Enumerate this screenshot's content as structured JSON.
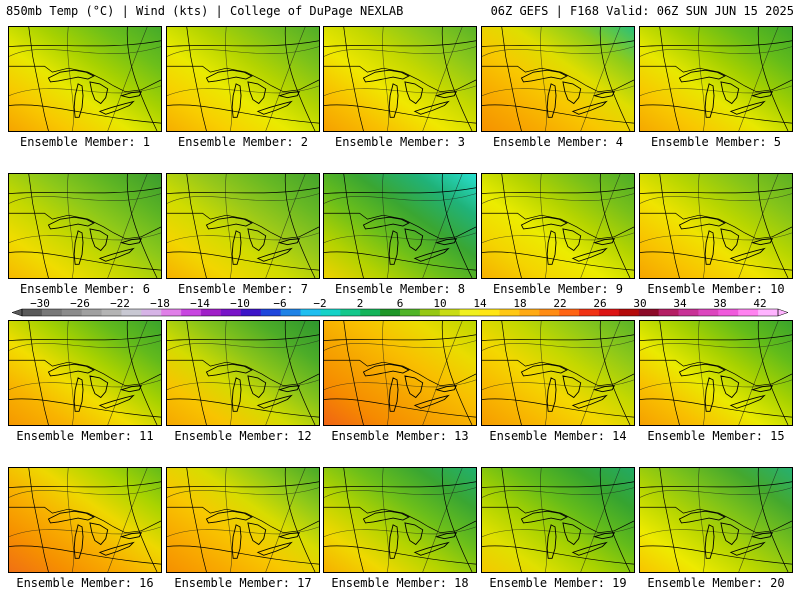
{
  "header": {
    "left": "850mb Temp (°C) | Wind (kts) | College of DuPage NEXLAB",
    "right": "06Z GEFS | F168 Valid: 06Z SUN JUN 15 2025"
  },
  "label_prefix": "Ensemble Member: ",
  "colorbar": {
    "labels": [
      "−30",
      "−26",
      "−22",
      "−18",
      "−14",
      "−10",
      "−6",
      "−2",
      "2",
      "6",
      "10",
      "14",
      "18",
      "22",
      "26",
      "30",
      "34",
      "38",
      "42"
    ],
    "colors": [
      "#5a5a5a",
      "#787878",
      "#8c8c8c",
      "#a0a0a0",
      "#b4b4b4",
      "#c8c8d2",
      "#d6b4e6",
      "#e07fe8",
      "#c846e0",
      "#a020c8",
      "#7814c8",
      "#3c14c8",
      "#1e46dc",
      "#1e82e6",
      "#1ebef0",
      "#14d2c8",
      "#14c88c",
      "#14b45a",
      "#1e9628",
      "#50b428",
      "#96c814",
      "#c8dc14",
      "#f0f01e",
      "#ffe614",
      "#ffc814",
      "#ffaa14",
      "#ff8c14",
      "#ff6414",
      "#f03214",
      "#dc1414",
      "#b40a0a",
      "#8c0a28",
      "#b41e64",
      "#c83296",
      "#dc46be",
      "#f05adc",
      "#ff82f0",
      "#ffb4ff"
    ]
  },
  "members": [
    {
      "id": 1,
      "number": "1",
      "theme": [
        "#f6a400",
        "#f8c800",
        "#e8e800",
        "#a8d200",
        "#6cbf1a",
        "#45ab2a"
      ]
    },
    {
      "id": 2,
      "number": "2",
      "theme": [
        "#f6ae00",
        "#f8cf00",
        "#eaea00",
        "#b4d400",
        "#7cc21a",
        "#50ae28"
      ]
    },
    {
      "id": 3,
      "number": "3",
      "theme": [
        "#f6a000",
        "#f8c000",
        "#f0e800",
        "#c4d800",
        "#8cc81a",
        "#5ab428"
      ]
    },
    {
      "id": 4,
      "number": "4",
      "theme": [
        "#f59200",
        "#f8aa00",
        "#f8c800",
        "#dede00",
        "#8ecc1a",
        "#2ac07a"
      ]
    },
    {
      "id": 5,
      "number": "5",
      "theme": [
        "#f6a800",
        "#f8c800",
        "#e8e800",
        "#a4d000",
        "#64bc1a",
        "#3ca82a"
      ]
    },
    {
      "id": 6,
      "number": "6",
      "theme": [
        "#f6b800",
        "#f0dc00",
        "#c4d800",
        "#8cc81a",
        "#5cb424",
        "#3a9c2e"
      ]
    },
    {
      "id": 7,
      "number": "7",
      "theme": [
        "#f6b000",
        "#f2d600",
        "#d0dc00",
        "#98c81a",
        "#66b824",
        "#44a42c"
      ]
    },
    {
      "id": 8,
      "number": "8",
      "theme": [
        "#f0d200",
        "#b4d200",
        "#6cbf1a",
        "#3aa632",
        "#20b278",
        "#28e0d0"
      ]
    },
    {
      "id": 9,
      "number": "9",
      "theme": [
        "#f6b000",
        "#f4d400",
        "#ecec00",
        "#b4d400",
        "#78c01a",
        "#4cac28"
      ]
    },
    {
      "id": 10,
      "number": "10",
      "theme": [
        "#f6a400",
        "#f8c400",
        "#f0e400",
        "#b8d600",
        "#84c41a",
        "#5cb024"
      ]
    },
    {
      "id": 11,
      "number": "11",
      "theme": [
        "#f69800",
        "#f8b400",
        "#f2de00",
        "#a8d200",
        "#62ba1c",
        "#3aa42c"
      ]
    },
    {
      "id": 12,
      "number": "12",
      "theme": [
        "#f6a800",
        "#f8c400",
        "#d4dc00",
        "#88c41a",
        "#4cac28",
        "#2e962e"
      ]
    },
    {
      "id": 13,
      "number": "13",
      "theme": [
        "#f06414",
        "#f68a00",
        "#f6a400",
        "#f8c000",
        "#eadc00",
        "#bcd600"
      ]
    },
    {
      "id": 14,
      "number": "14",
      "theme": [
        "#f69c00",
        "#f8b800",
        "#f4d800",
        "#c4d800",
        "#8cc81a",
        "#5ab428"
      ]
    },
    {
      "id": 15,
      "number": "15",
      "theme": [
        "#f6a000",
        "#f8c000",
        "#eaea00",
        "#a8d200",
        "#62bc1a",
        "#3aa42c"
      ]
    },
    {
      "id": 16,
      "number": "16",
      "theme": [
        "#f07014",
        "#f69000",
        "#f8b000",
        "#eed800",
        "#aad400",
        "#64bc1a"
      ]
    },
    {
      "id": 17,
      "number": "17",
      "theme": [
        "#f69000",
        "#f8aa00",
        "#f8c800",
        "#d8dc00",
        "#8cc81a",
        "#48aa28"
      ]
    },
    {
      "id": 18,
      "number": "18",
      "theme": [
        "#f6b000",
        "#f0d800",
        "#b4d400",
        "#6cbf1a",
        "#3aa632",
        "#20b06e"
      ]
    },
    {
      "id": 19,
      "number": "19",
      "theme": [
        "#f4c800",
        "#e0e000",
        "#a8d200",
        "#64bc1a",
        "#36a430",
        "#22aa64"
      ]
    },
    {
      "id": 20,
      "number": "20",
      "theme": [
        "#f8c400",
        "#eeea00",
        "#b8d600",
        "#7cc21a",
        "#44a82e",
        "#26b070"
      ]
    }
  ]
}
